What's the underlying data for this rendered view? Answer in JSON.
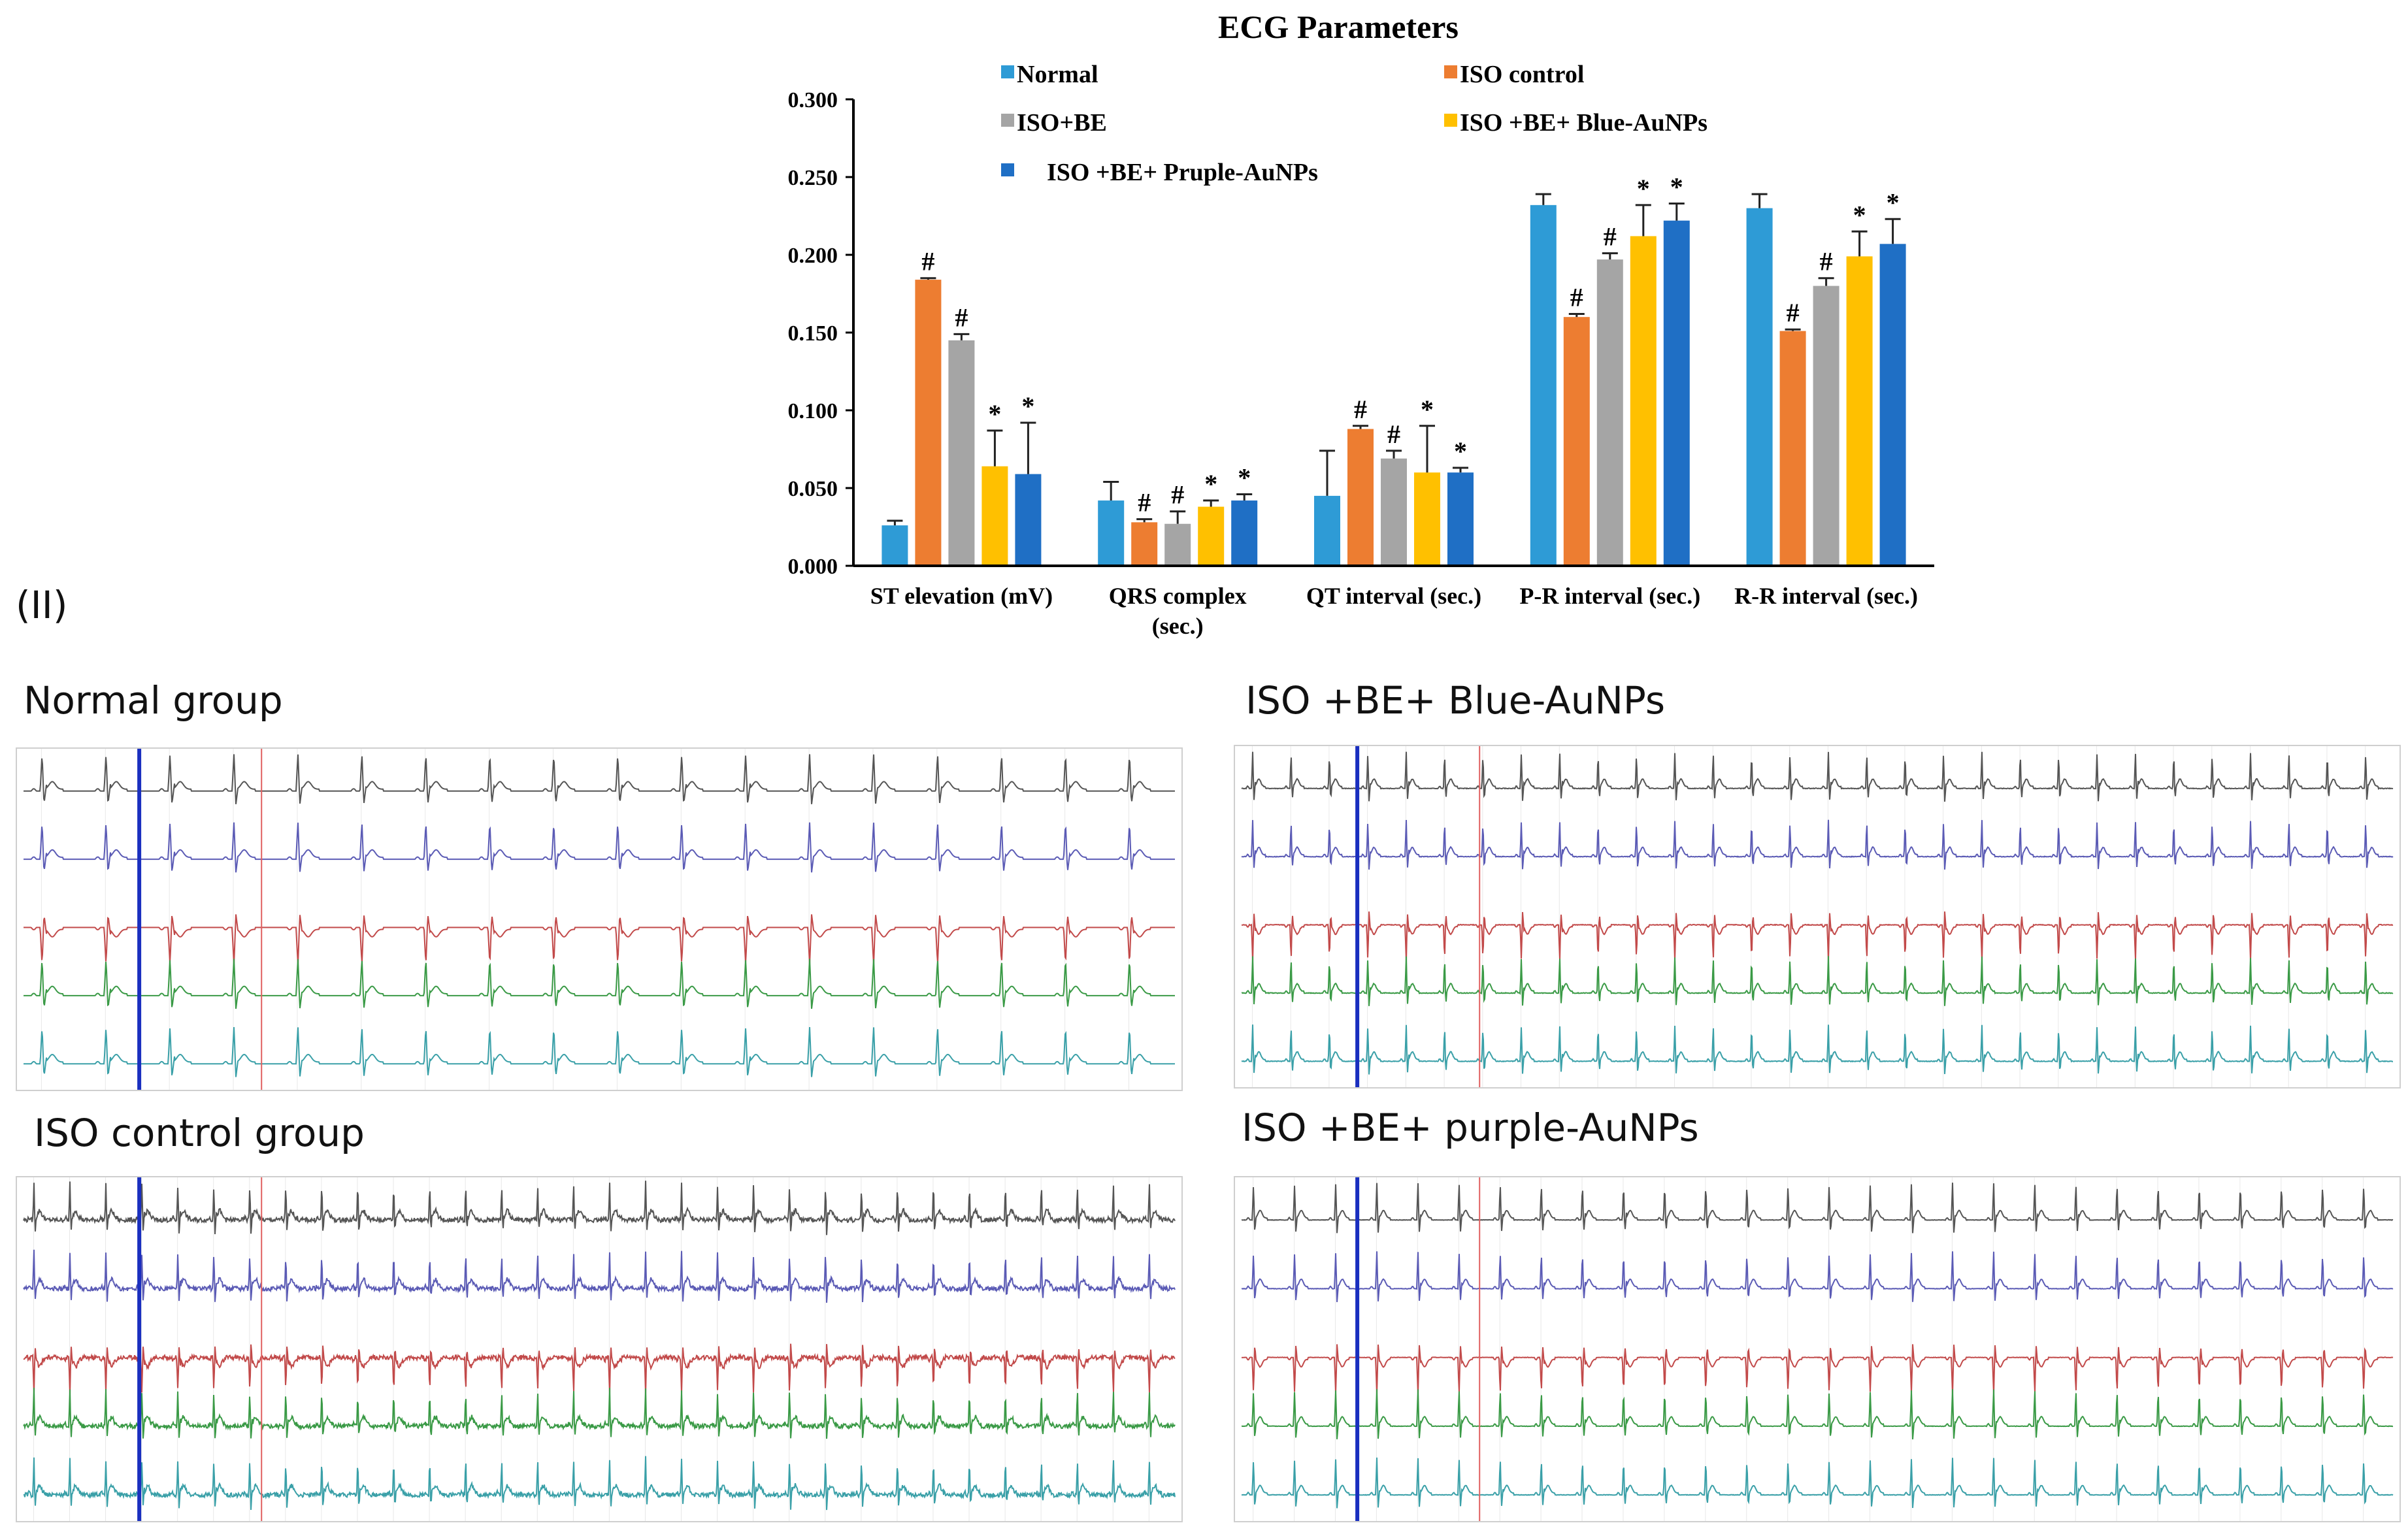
{
  "chart_data": {
    "type": "bar",
    "title": "ECG Parameters",
    "categories": [
      "ST elevation (mV)",
      "QRS complex (sec.)",
      "QT interval (sec.)",
      "P-R interval (sec.)",
      "R-R interval (sec.)"
    ],
    "category_label_lines": [
      [
        "ST elevation (mV)"
      ],
      [
        "QRS complex",
        "(sec.)"
      ],
      [
        "QT interval (sec.)"
      ],
      [
        "P-R interval (sec.)"
      ],
      [
        "R-R interval (sec.)"
      ]
    ],
    "ylim": [
      0,
      0.3
    ],
    "yticks": [
      0.0,
      0.05,
      0.1,
      0.15,
      0.2,
      0.25,
      0.3
    ],
    "ytick_labels": [
      "0.000",
      "0.050",
      "0.100",
      "0.150",
      "0.200",
      "0.250",
      "0.300"
    ],
    "legend_position": "top",
    "series": [
      {
        "name": "Normal",
        "color": "#2E9BD6",
        "values": [
          0.026,
          0.042,
          0.045,
          0.232,
          0.23
        ],
        "errors": [
          0.003,
          0.012,
          0.029,
          0.007,
          0.009
        ],
        "annotations": [
          "",
          "",
          "",
          "",
          ""
        ]
      },
      {
        "name": "ISO control",
        "color": "#ED7D31",
        "values": [
          0.184,
          0.028,
          0.088,
          0.16,
          0.151
        ],
        "errors": [
          0.001,
          0.002,
          0.002,
          0.002,
          0.001
        ],
        "annotations": [
          "#",
          "#",
          "#",
          "#",
          "#"
        ]
      },
      {
        "name": "ISO+BE",
        "color": "#A5A5A5",
        "values": [
          0.145,
          0.027,
          0.069,
          0.197,
          0.18
        ],
        "errors": [
          0.004,
          0.008,
          0.005,
          0.004,
          0.005
        ],
        "annotations": [
          "#",
          "#",
          "#",
          "#",
          "#"
        ]
      },
      {
        "name": "ISO +BE+ Blue-AuNPs",
        "color": "#FFC000",
        "values": [
          0.064,
          0.038,
          0.06,
          0.212,
          0.199
        ],
        "errors": [
          0.023,
          0.004,
          0.03,
          0.02,
          0.016
        ],
        "annotations": [
          "*",
          "*",
          "*",
          "*",
          "*"
        ]
      },
      {
        "name": "ISO +BE+ Pruple-AuNPs",
        "color": "#1F6FC5",
        "values": [
          0.059,
          0.042,
          0.06,
          0.222,
          0.207
        ],
        "errors": [
          0.033,
          0.004,
          0.003,
          0.011,
          0.016
        ],
        "annotations": [
          "*",
          "*",
          "*",
          "*",
          "*"
        ]
      }
    ]
  },
  "section_label": "(II)",
  "ecg_panels": [
    {
      "title": "Normal group",
      "beats": 18,
      "noise": 0.0
    },
    {
      "title": "ISO +BE+ Blue-AuNPs",
      "beats": 30,
      "noise": 0.15
    },
    {
      "title": "ISO control group",
      "beats": 32,
      "noise": 1.0
    },
    {
      "title": "ISO +BE+ purple-AuNPs",
      "beats": 28,
      "noise": 0.1
    }
  ],
  "ecg_lead_colors": [
    "#555555",
    "#5b5bb5",
    "#c24a4a",
    "#3a9a46",
    "#3aa0a8"
  ],
  "ecg_marker_colors": {
    "blue": "#1a2fbf",
    "red": "#e06060"
  }
}
